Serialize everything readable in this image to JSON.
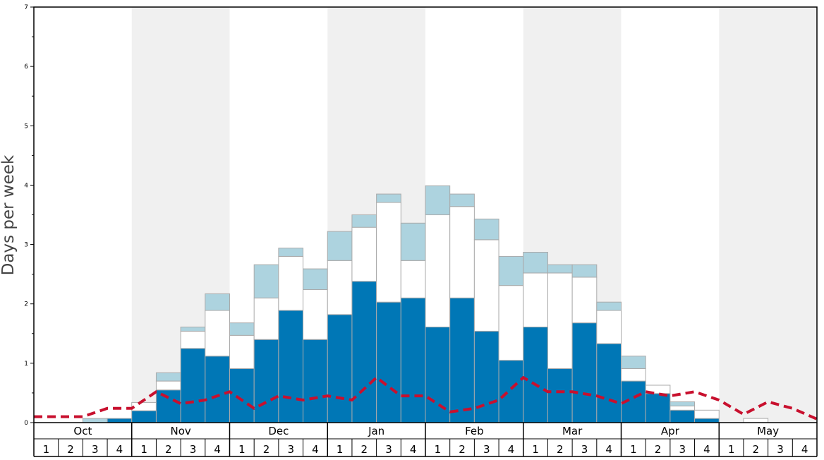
{
  "chart_data": {
    "type": "bar",
    "ylabel": "Days per week",
    "ylim": [
      0,
      7
    ],
    "y_ticks": [
      "0",
      "1",
      "2",
      "3",
      "4",
      "5",
      "6",
      "7"
    ],
    "months": [
      "Oct",
      "Nov",
      "Dec",
      "Jan",
      "Feb",
      "Mar",
      "Apr",
      "May"
    ],
    "week_labels": [
      "1",
      "2",
      "3",
      "4"
    ],
    "shaded_months": [
      "Nov",
      "Jan",
      "Mar",
      "May"
    ],
    "stacked": true,
    "grid": false,
    "colors": {
      "bottom": "#0077b6",
      "middle": "#ffffff",
      "top": "#add3df",
      "outline": "#aaaaaa",
      "line": "#c8102e",
      "shade": "#f0f0f0"
    },
    "series": [
      {
        "key": "bottom",
        "values": [
          0,
          0,
          0,
          0.07,
          0.2,
          0.55,
          1.25,
          1.12,
          0.91,
          1.4,
          1.89,
          1.4,
          1.82,
          2.38,
          2.03,
          2.1,
          1.61,
          2.1,
          1.54,
          1.05,
          1.61,
          0.91,
          1.68,
          1.33,
          0.7,
          0.49,
          0.21,
          0.07,
          0,
          0,
          0,
          0
        ]
      },
      {
        "key": "middle",
        "values": [
          0,
          0,
          0,
          0,
          0.14,
          0.15,
          0.29,
          0.77,
          0.56,
          0.7,
          0.91,
          0.84,
          0.91,
          0.91,
          1.68,
          0.63,
          1.89,
          1.54,
          1.54,
          1.26,
          0.91,
          1.61,
          0.77,
          0.56,
          0.21,
          0.14,
          0.07,
          0.14,
          0,
          0.07,
          0,
          0
        ]
      },
      {
        "key": "top",
        "values": [
          0,
          0,
          0.07,
          0,
          0,
          0.14,
          0.07,
          0.28,
          0.21,
          0.56,
          0.14,
          0.35,
          0.49,
          0.21,
          0.14,
          0.63,
          0.49,
          0.21,
          0.35,
          0.49,
          0.35,
          0.14,
          0.21,
          0.14,
          0.21,
          0,
          0.07,
          0,
          0,
          0,
          0,
          0
        ]
      }
    ],
    "line": [
      0.1,
      0.1,
      0.1,
      0.24,
      0.24,
      0.52,
      0.32,
      0.38,
      0.52,
      0.24,
      0.45,
      0.38,
      0.45,
      0.38,
      0.76,
      0.45,
      0.45,
      0.18,
      0.24,
      0.38,
      0.76,
      0.52,
      0.52,
      0.45,
      0.32,
      0.52,
      0.45,
      0.52,
      0.38,
      0.14,
      0.35,
      0.24,
      0.06
    ]
  }
}
